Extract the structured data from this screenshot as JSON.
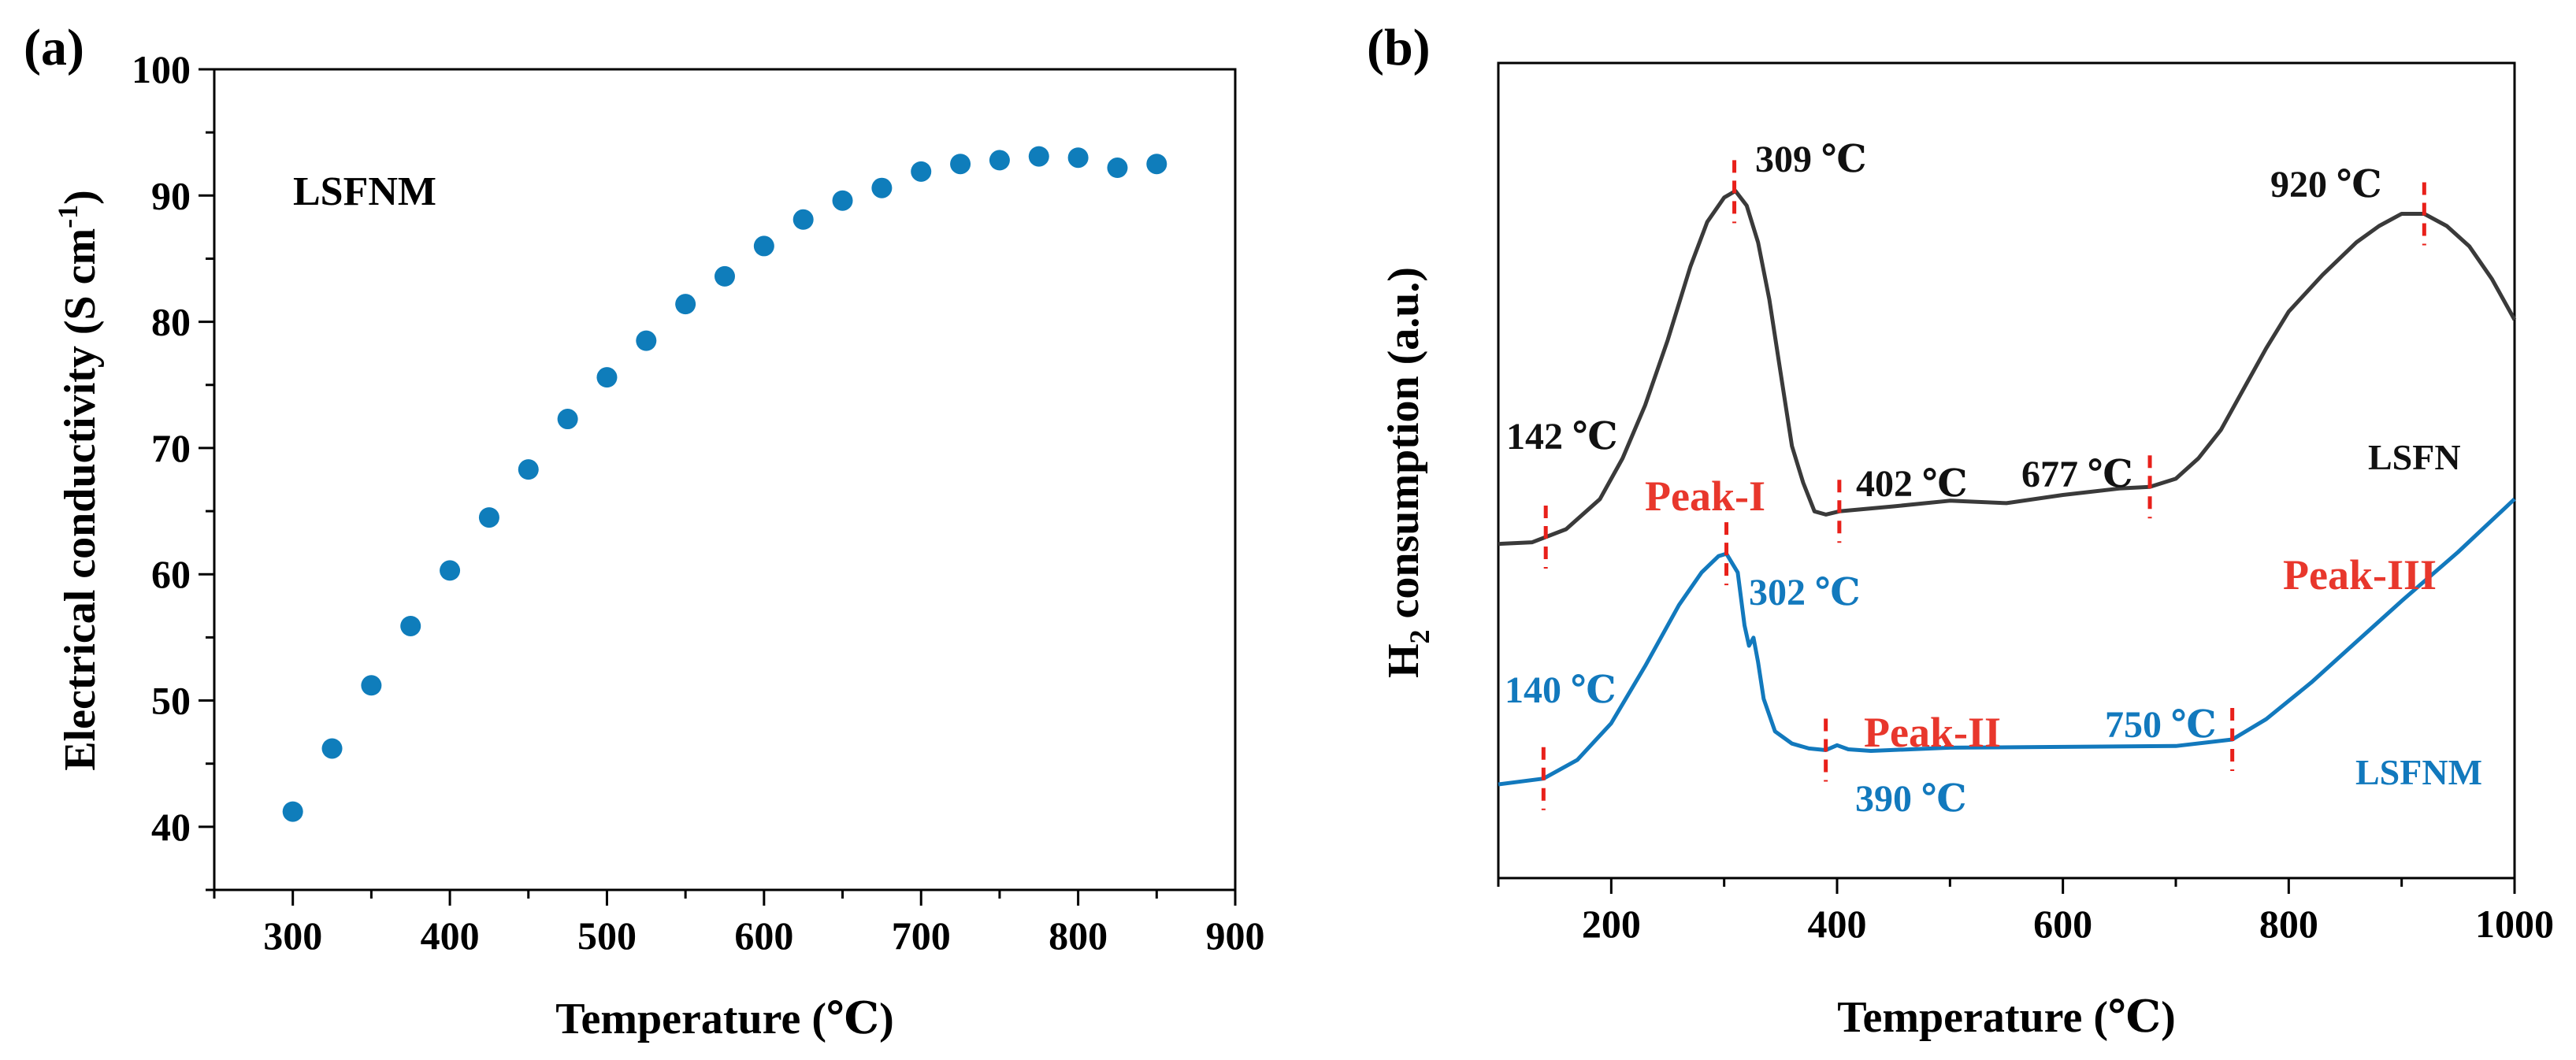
{
  "chart_data": [
    {
      "panel": "(a)",
      "type": "scatter",
      "title": "",
      "xlabel": "Temperature (℃)",
      "ylabel": "Electrical conductivity (S cm",
      "ylabel_sup": "-1",
      "ylabel_end": ")",
      "xlim": [
        250,
        900
      ],
      "ylim": [
        35,
        100
      ],
      "xticks": [
        300,
        400,
        500,
        600,
        700,
        800,
        900
      ],
      "yticks": [
        40,
        50,
        60,
        70,
        80,
        90,
        100
      ],
      "series": [
        {
          "name": "LSFNM",
          "color": "#0f7dbb",
          "x": [
            300,
            325,
            350,
            375,
            400,
            425,
            450,
            475,
            500,
            525,
            550,
            575,
            600,
            625,
            650,
            675,
            700,
            725,
            750,
            775,
            800,
            825,
            850
          ],
          "y": [
            41.2,
            46.2,
            51.2,
            55.9,
            60.3,
            64.5,
            68.3,
            72.3,
            75.6,
            78.5,
            81.4,
            83.6,
            86.0,
            88.1,
            89.6,
            90.6,
            91.9,
            92.5,
            92.8,
            93.1,
            93.0,
            92.2,
            92.5
          ]
        }
      ],
      "annotation": "LSFNM"
    },
    {
      "panel": "(b)",
      "type": "line",
      "title": "",
      "xlabel": "Temperature (℃)",
      "ylabel_pre": "H",
      "ylabel_sub": "2",
      "ylabel_post": " consumption (a.u.)",
      "xlim": [
        100,
        1000
      ],
      "ylim": [
        0,
        100
      ],
      "xticks": [
        200,
        400,
        600,
        800,
        1000
      ],
      "y_ticks_shown": false,
      "series": [
        {
          "name": "LSFN",
          "color": "#3a3a3a",
          "x": [
            100,
            130,
            160,
            190,
            210,
            230,
            250,
            270,
            285,
            300,
            310,
            320,
            330,
            340,
            350,
            360,
            370,
            380,
            390,
            402,
            450,
            500,
            550,
            600,
            650,
            677,
            700,
            720,
            740,
            760,
            780,
            800,
            830,
            860,
            880,
            900,
            920,
            940,
            960,
            980,
            1000
          ],
          "y": [
            41.0,
            41.2,
            42.8,
            46.5,
            51.5,
            58.0,
            66.0,
            75.0,
            80.5,
            83.5,
            84.3,
            82.5,
            78.0,
            71.0,
            62.0,
            53.0,
            48.5,
            45.0,
            44.6,
            45.0,
            45.6,
            46.3,
            46.0,
            47.0,
            47.8,
            48.0,
            49.0,
            51.5,
            55.0,
            60.0,
            65.0,
            69.5,
            74.0,
            78.0,
            80.0,
            81.5,
            81.5,
            80.0,
            77.5,
            73.5,
            68.5
          ],
          "offset": 0
        },
        {
          "name": "LSFNM",
          "color": "#1279bd",
          "x": [
            100,
            140,
            170,
            200,
            230,
            260,
            280,
            295,
            302,
            312,
            318,
            322,
            326,
            330,
            335,
            345,
            360,
            375,
            390,
            400,
            410,
            430,
            500,
            600,
            700,
            750,
            780,
            820,
            860,
            900,
            950,
            1000
          ],
          "y": [
            11.5,
            12.2,
            14.5,
            19.0,
            26.0,
            33.5,
            37.5,
            39.5,
            39.8,
            37.5,
            31.0,
            28.5,
            29.5,
            26.5,
            22.0,
            18.0,
            16.5,
            15.9,
            15.7,
            16.3,
            15.8,
            15.6,
            16.0,
            16.1,
            16.2,
            17.0,
            19.5,
            24.0,
            29.0,
            34.0,
            40.0,
            46.5
          ],
          "offset": 0
        }
      ],
      "annotations": [
        {
          "text": "142 ℃",
          "series": "LSFN",
          "color": "#111111"
        },
        {
          "text": "309 ℃",
          "series": "LSFN",
          "color": "#111111"
        },
        {
          "text": "402 ℃",
          "series": "LSFN",
          "color": "#111111"
        },
        {
          "text": "677 ℃",
          "series": "LSFN",
          "color": "#111111"
        },
        {
          "text": "920 ℃",
          "series": "LSFN",
          "color": "#111111"
        },
        {
          "text": "140 ℃",
          "series": "LSFNM",
          "color": "#1279bd"
        },
        {
          "text": "302 ℃",
          "series": "LSFNM",
          "color": "#1279bd"
        },
        {
          "text": "390 ℃",
          "series": "LSFNM",
          "color": "#1279bd"
        },
        {
          "text": "750 ℃",
          "series": "LSFNM",
          "color": "#1279bd"
        }
      ],
      "markers": {
        "LSFN": [
          142,
          309,
          402,
          677,
          920
        ],
        "LSFNM": [
          140,
          302,
          390,
          750
        ]
      },
      "marker_color": "#e8201a",
      "peak_labels": [
        "Peak-I",
        "Peak-II",
        "Peak-III"
      ],
      "peak_color": "#e8372c",
      "sample_labels": [
        {
          "text": "LSFN",
          "color": "#111111"
        },
        {
          "text": "LSFNM",
          "color": "#1279bd"
        }
      ]
    }
  ]
}
